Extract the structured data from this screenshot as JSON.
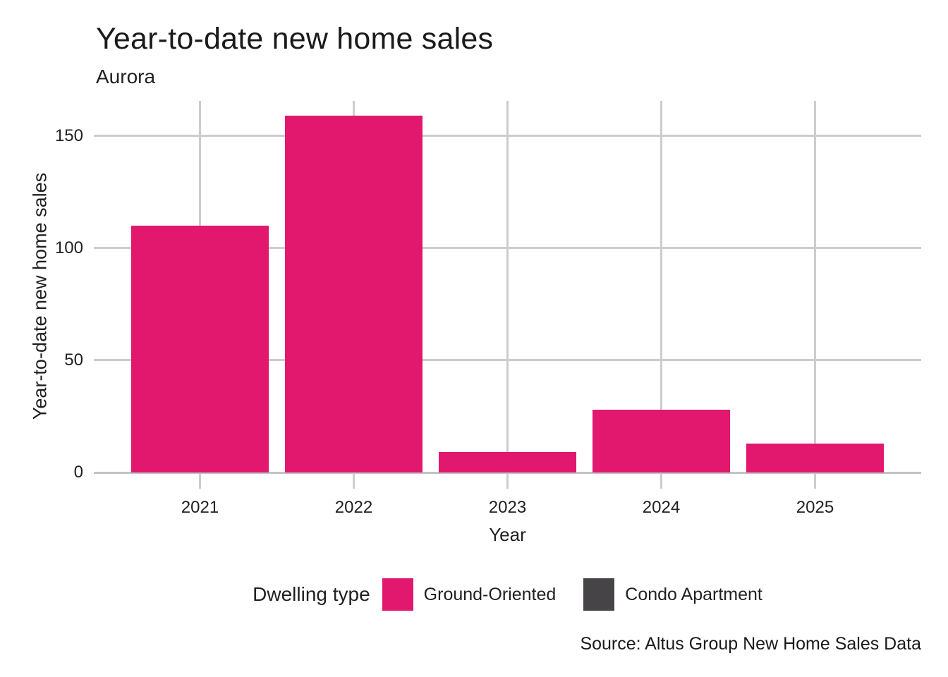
{
  "header": {
    "title": "Year-to-date new home sales",
    "subtitle": "Aurora"
  },
  "chart_data": {
    "type": "bar",
    "title": "Year-to-date new home sales",
    "subtitle": "Aurora",
    "categories": [
      "2021",
      "2022",
      "2023",
      "2024",
      "2025"
    ],
    "series": [
      {
        "name": "Ground-Oriented",
        "color": "#E2186F",
        "values": [
          110,
          159,
          9,
          28,
          13
        ]
      },
      {
        "name": "Condo Apartment",
        "color": "#474447",
        "values": [
          0,
          0,
          0,
          0,
          0
        ]
      }
    ],
    "xlabel": "Year",
    "ylabel": "Year-to-date new home sales",
    "y_ticks": [
      0,
      50,
      100,
      150
    ],
    "ylim": [
      0,
      165.6
    ],
    "grid": true,
    "legend_title": "Dwelling type",
    "legend_position": "bottom",
    "source": "Source: Altus Group New Home Sales Data"
  },
  "legend": {
    "title": "Dwelling type",
    "items": [
      {
        "label": "Ground-Oriented",
        "color": "#E2186F"
      },
      {
        "label": "Condo Apartment",
        "color": "#474447"
      }
    ]
  },
  "footer": {
    "source": "Source: Altus Group New Home Sales Data"
  },
  "colors": {
    "ground_oriented": "#E2186F",
    "condo_apartment": "#474447",
    "gridline": "#CDCDCD",
    "axis_line": "#C4C4C4",
    "text": "#212121"
  }
}
